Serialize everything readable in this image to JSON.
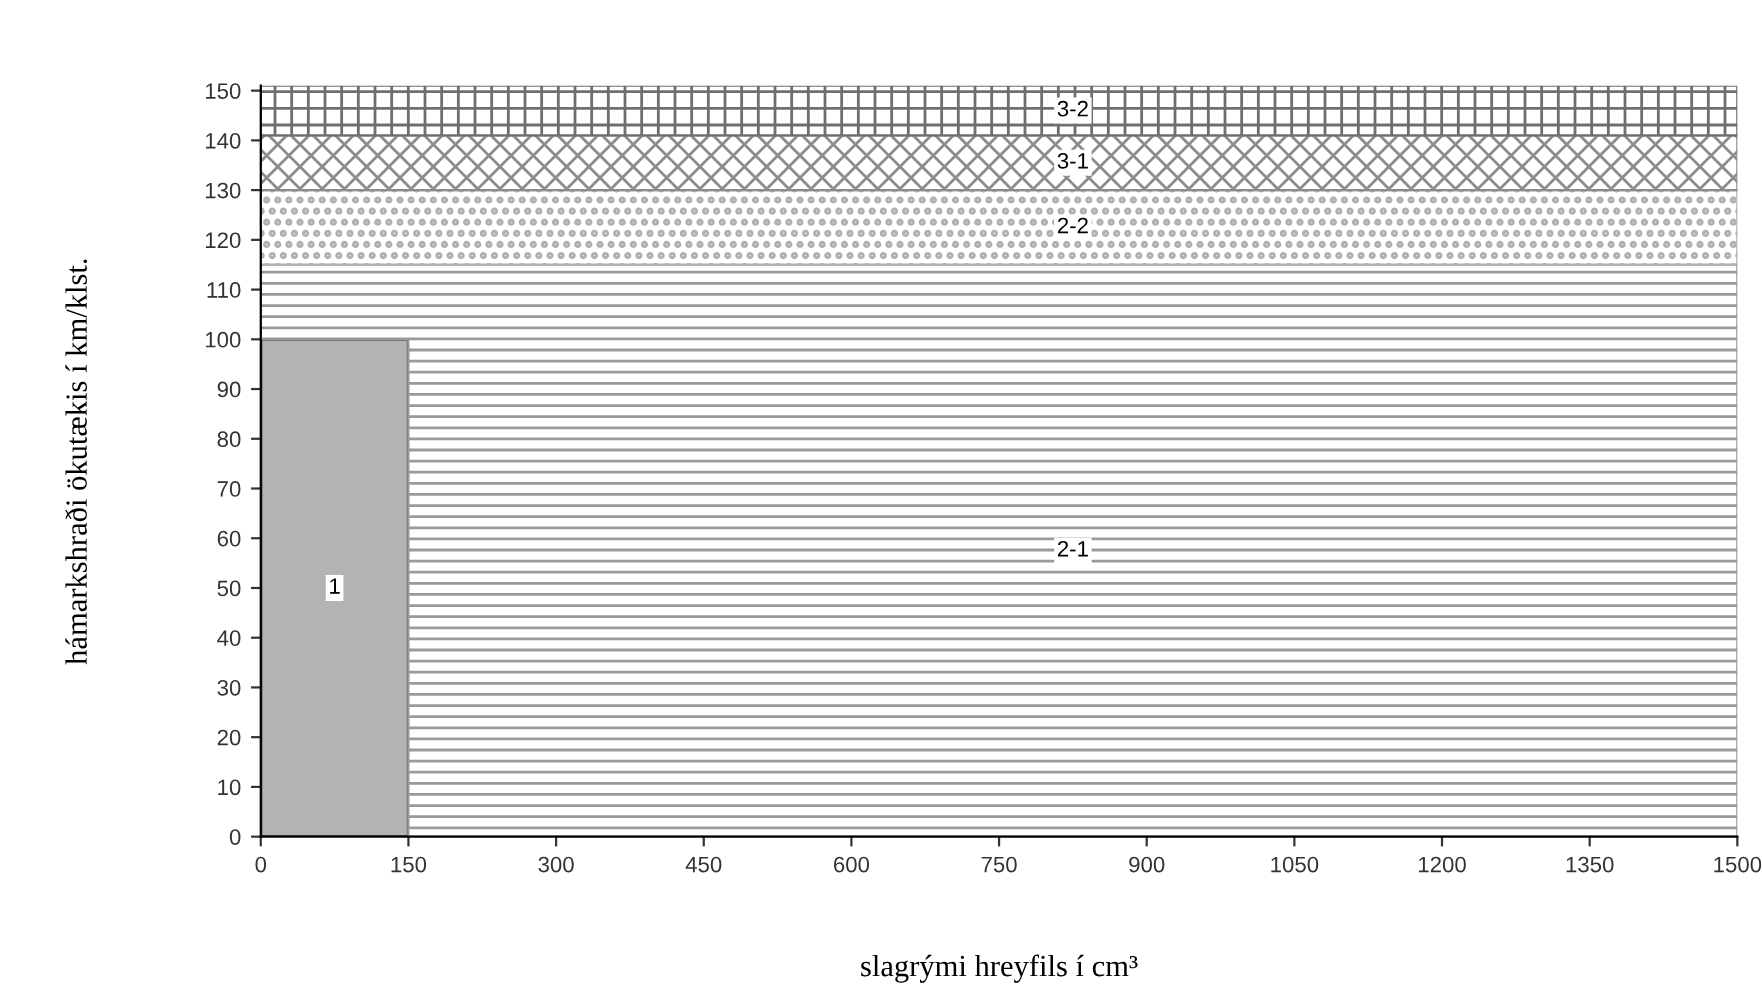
{
  "chart_data": {
    "type": "area",
    "stacked": true,
    "xlabel": "slagrými hreyfils í cm³",
    "ylabel": "hámarkshraði ökutækis í km/klst.",
    "x": [
      0,
      150,
      1500
    ],
    "series": [
      {
        "name": "1",
        "color": "#b3b3b3",
        "values": [
          100,
          0,
          0
        ]
      },
      {
        "name": "2-1",
        "color": "#9a9a9a",
        "values": [
          15,
          115,
          115
        ]
      },
      {
        "name": "2-2",
        "color": "#b0b0b0",
        "values": [
          15,
          15,
          15
        ]
      },
      {
        "name": "3-1",
        "color": "#8c8c8c",
        "values": [
          11,
          11,
          11
        ]
      },
      {
        "name": "3-2",
        "color": "#6e6e6e",
        "values": [
          10,
          10,
          10
        ]
      }
    ],
    "xlim": [
      0,
      1500
    ],
    "xticks": [
      0,
      150,
      300,
      450,
      600,
      750,
      900,
      1050,
      1200,
      1350,
      1500
    ],
    "ylim": [
      0,
      151
    ],
    "yticks": [
      0,
      10,
      20,
      30,
      40,
      50,
      60,
      70,
      80,
      90,
      100,
      110,
      120,
      130,
      140,
      150
    ],
    "grid": false,
    "legend": false
  }
}
